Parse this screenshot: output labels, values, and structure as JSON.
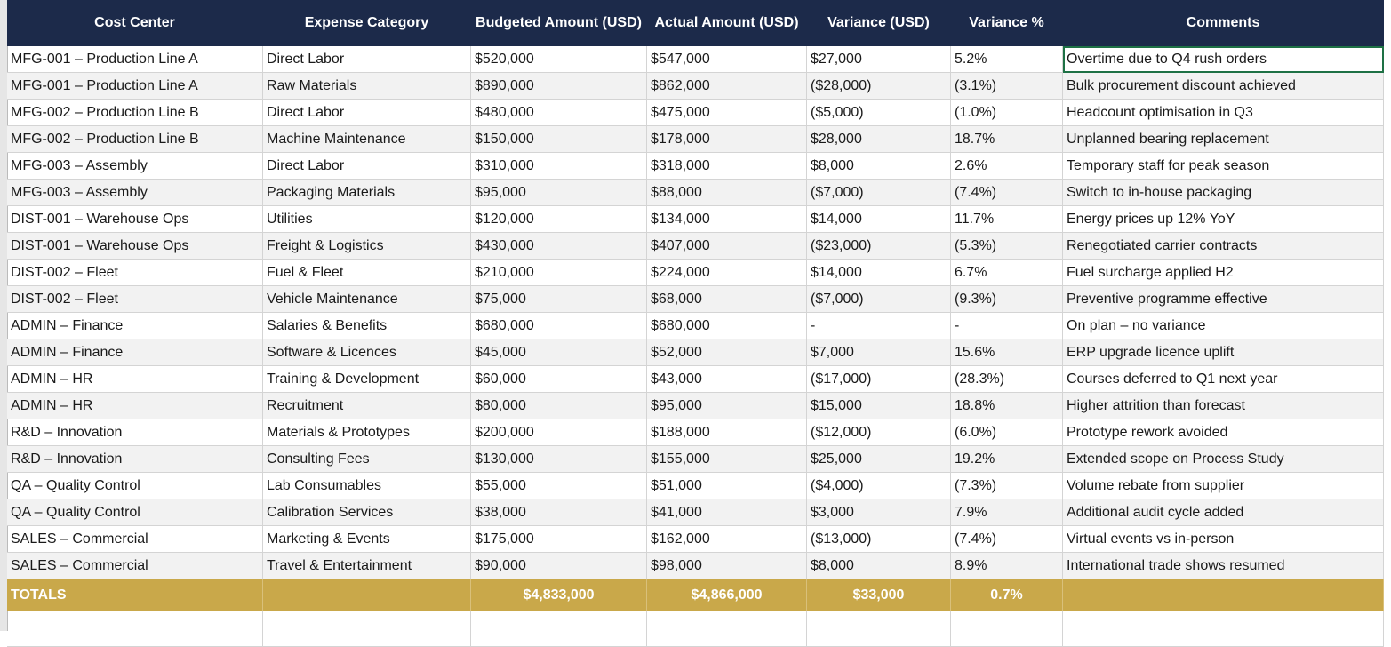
{
  "table": {
    "headers": [
      "Cost Center",
      "Expense Category",
      "Budgeted Amount (USD)",
      "Actual Amount (USD)",
      "Variance (USD)",
      "Variance %",
      "Comments"
    ],
    "rows": [
      [
        "MFG-001 – Production Line A",
        "Direct Labor",
        "$520,000",
        "$547,000",
        "$27,000",
        "5.2%",
        "Overtime due to Q4 rush orders"
      ],
      [
        "MFG-001 – Production Line A",
        "Raw Materials",
        "$890,000",
        "$862,000",
        "($28,000)",
        "(3.1%)",
        "Bulk procurement discount achieved"
      ],
      [
        "MFG-002 – Production Line B",
        "Direct Labor",
        "$480,000",
        "$475,000",
        "($5,000)",
        "(1.0%)",
        "Headcount optimisation in Q3"
      ],
      [
        "MFG-002 – Production Line B",
        "Machine Maintenance",
        "$150,000",
        "$178,000",
        "$28,000",
        "18.7%",
        "Unplanned bearing replacement"
      ],
      [
        "MFG-003 – Assembly",
        "Direct Labor",
        "$310,000",
        "$318,000",
        "$8,000",
        "2.6%",
        "Temporary staff for peak season"
      ],
      [
        "MFG-003 – Assembly",
        "Packaging Materials",
        "$95,000",
        "$88,000",
        "($7,000)",
        "(7.4%)",
        "Switch to in-house packaging"
      ],
      [
        "DIST-001 – Warehouse Ops",
        "Utilities",
        "$120,000",
        "$134,000",
        "$14,000",
        "11.7%",
        "Energy prices up 12% YoY"
      ],
      [
        "DIST-001 – Warehouse Ops",
        "Freight & Logistics",
        "$430,000",
        "$407,000",
        "($23,000)",
        "(5.3%)",
        "Renegotiated carrier contracts"
      ],
      [
        "DIST-002 – Fleet",
        "Fuel & Fleet",
        "$210,000",
        "$224,000",
        "$14,000",
        "6.7%",
        "Fuel surcharge applied H2"
      ],
      [
        "DIST-002 – Fleet",
        "Vehicle Maintenance",
        "$75,000",
        "$68,000",
        "($7,000)",
        "(9.3%)",
        "Preventive programme effective"
      ],
      [
        "ADMIN – Finance",
        "Salaries & Benefits",
        "$680,000",
        "$680,000",
        "-",
        "-",
        "On plan – no variance"
      ],
      [
        "ADMIN – Finance",
        "Software & Licences",
        "$45,000",
        "$52,000",
        "$7,000",
        "15.6%",
        "ERP upgrade licence uplift"
      ],
      [
        "ADMIN – HR",
        "Training & Development",
        "$60,000",
        "$43,000",
        "($17,000)",
        "(28.3%)",
        "Courses deferred to Q1 next year"
      ],
      [
        "ADMIN – HR",
        "Recruitment",
        "$80,000",
        "$95,000",
        "$15,000",
        "18.8%",
        "Higher attrition than forecast"
      ],
      [
        "R&D – Innovation",
        "Materials & Prototypes",
        "$200,000",
        "$188,000",
        "($12,000)",
        "(6.0%)",
        "Prototype rework avoided"
      ],
      [
        "R&D – Innovation",
        "Consulting Fees",
        "$130,000",
        "$155,000",
        "$25,000",
        "19.2%",
        "Extended scope on Process Study"
      ],
      [
        "QA – Quality Control",
        "Lab Consumables",
        "$55,000",
        "$51,000",
        "($4,000)",
        "(7.3%)",
        "Volume rebate from supplier"
      ],
      [
        "QA – Quality Control",
        "Calibration Services",
        "$38,000",
        "$41,000",
        "$3,000",
        "7.9%",
        "Additional audit cycle added"
      ],
      [
        "SALES – Commercial",
        "Marketing & Events",
        "$175,000",
        "$162,000",
        "($13,000)",
        "(7.4%)",
        "Virtual events vs in-person"
      ],
      [
        "SALES – Commercial",
        "Travel & Entertainment",
        "$90,000",
        "$98,000",
        "$8,000",
        "8.9%",
        "International trade shows resumed"
      ]
    ],
    "totals": {
      "label": "TOTALS",
      "budgeted": "$4,833,000",
      "actual": "$4,866,000",
      "variance": "$33,000",
      "variance_pct": "0.7%"
    }
  }
}
